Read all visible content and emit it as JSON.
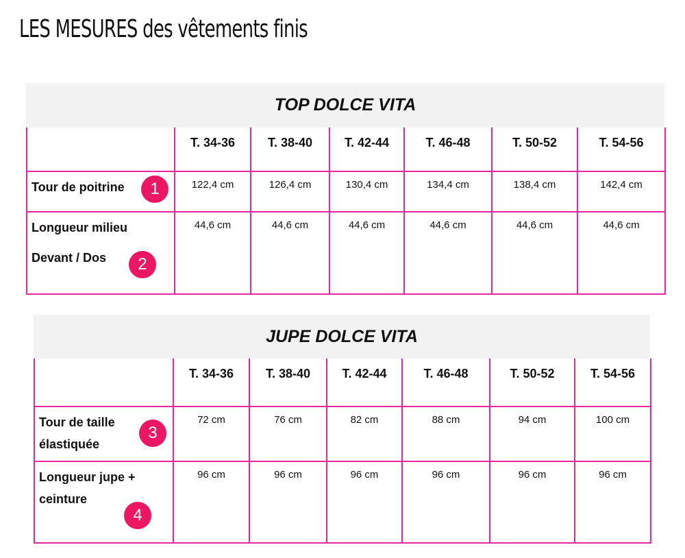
{
  "page": {
    "title": "LES MESURES des vêtements finis"
  },
  "colors": {
    "border": "#e8259c",
    "badge": "#ed1662",
    "header_bg": "#f2f2f2"
  },
  "top": {
    "title": "TOP DOLCE VITA",
    "sizes": [
      "T. 34-36",
      "T. 38-40",
      "T. 42-44",
      "T. 46-48",
      "T. 50-52",
      "T. 54-56"
    ],
    "rows": [
      {
        "label_lines": [
          "Tour de poitrine"
        ],
        "badge": "1",
        "values": [
          "122,4 cm",
          "126,4 cm",
          "130,4 cm",
          "134,4 cm",
          "138,4 cm",
          "142,4 cm"
        ]
      },
      {
        "label_lines": [
          "Longueur milieu",
          "Devant / Dos"
        ],
        "badge": "2",
        "values": [
          "44,6 cm",
          "44,6 cm",
          "44,6 cm",
          "44,6 cm",
          "44,6 cm",
          "44,6 cm"
        ]
      }
    ]
  },
  "jupe": {
    "title": "JUPE DOLCE VITA",
    "sizes": [
      "T. 34-36",
      "T. 38-40",
      "T. 42-44",
      "T. 46-48",
      "T. 50-52",
      "T. 54-56"
    ],
    "rows": [
      {
        "label_lines": [
          "Tour de taille",
          "élastiquée"
        ],
        "badge": "3",
        "values": [
          "72  cm",
          "76  cm",
          "82  cm",
          "88 cm",
          "94 cm",
          "100  cm"
        ]
      },
      {
        "label_lines": [
          "Longueur jupe +",
          "ceinture"
        ],
        "badge": "4",
        "values": [
          "96 cm",
          "96 cm",
          "96 cm",
          "96 cm",
          "96 cm",
          "96 cm"
        ]
      }
    ]
  }
}
